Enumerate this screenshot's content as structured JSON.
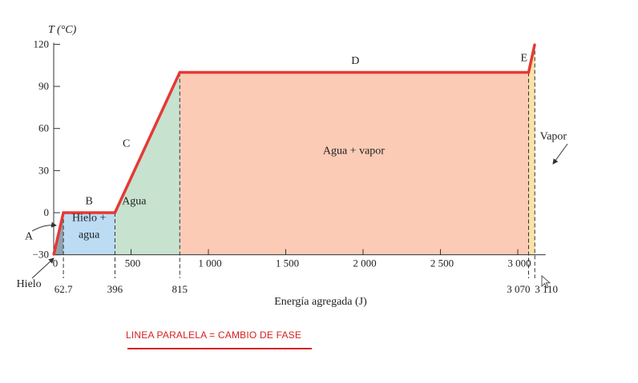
{
  "chart_data": {
    "type": "line",
    "ylabel": "T (°C)",
    "xlabel": "Energía agregada (J)",
    "xlim": [
      0,
      3180
    ],
    "ylim": [
      -30,
      120
    ],
    "y_ticks": [
      {
        "value": -30,
        "label": "−30"
      },
      {
        "value": 0,
        "label": "0"
      },
      {
        "value": 30,
        "label": "30"
      },
      {
        "value": 60,
        "label": "60"
      },
      {
        "value": 90,
        "label": "90"
      },
      {
        "value": 120,
        "label": "120"
      }
    ],
    "x_ticks": [
      {
        "value": 0,
        "label": "0"
      },
      {
        "value": 500,
        "label": "500"
      },
      {
        "value": 1000,
        "label": "1 000"
      },
      {
        "value": 1500,
        "label": "1 500"
      },
      {
        "value": 2000,
        "label": "2 000"
      },
      {
        "value": 2500,
        "label": "2 500"
      },
      {
        "value": 3000,
        "label": "3 000"
      }
    ],
    "marked_x": [
      {
        "value": 62.7,
        "label": "62.7"
      },
      {
        "value": 396,
        "label": "396"
      },
      {
        "value": 815,
        "label": "815"
      },
      {
        "value": 3070,
        "label": "3 070"
      },
      {
        "value": 3110,
        "label": "3 110"
      }
    ],
    "series": [
      {
        "x": [
          0,
          62.7,
          396,
          815,
          3070,
          3110
        ],
        "y": [
          -30,
          0,
          0,
          100,
          100,
          120
        ],
        "color": "#e53935"
      }
    ],
    "regions": [
      {
        "x0": 0,
        "x1": 62.7,
        "color": "#8fa3b1"
      },
      {
        "x0": 62.7,
        "x1": 396,
        "color": "#bcdcf4"
      },
      {
        "x0": 396,
        "x1": 815,
        "color": "#c7e2cf"
      },
      {
        "x0": 815,
        "x1": 3070,
        "color": "#fccbb6"
      },
      {
        "x0": 3070,
        "x1": 3110,
        "color": "#f9e3a8"
      }
    ],
    "segment_labels": [
      {
        "text": "A",
        "x": -160,
        "y": -19
      },
      {
        "text": "B",
        "x": 229,
        "y": 6
      },
      {
        "text": "C",
        "x": 470,
        "y": 47
      },
      {
        "text": "D",
        "x": 1950,
        "y": 106
      },
      {
        "text": "E",
        "x": 3040,
        "y": 108
      }
    ],
    "region_labels": [
      {
        "text": "Hielo +",
        "x": 229,
        "y": -6
      },
      {
        "text": "agua",
        "x": 229,
        "y": -18
      },
      {
        "text": "Agua",
        "x": 520,
        "y": 6
      },
      {
        "text": "Agua + vapor",
        "x": 1940,
        "y": 42
      },
      {
        "text": "Vapor",
        "x": 3230,
        "y": 52
      },
      {
        "text": "Hielo",
        "x": -160,
        "y": -53
      }
    ]
  },
  "annotation": {
    "text": "LINEA PARALELA = CAMBIO DE FASE",
    "color": "#d62020"
  }
}
